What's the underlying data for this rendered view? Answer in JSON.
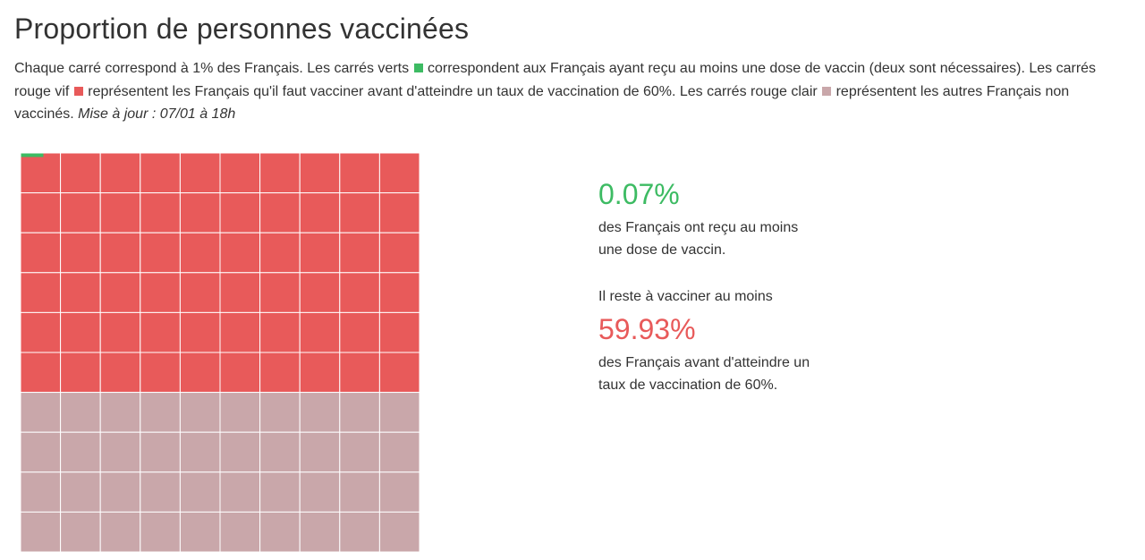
{
  "title": "Proportion de personnes vaccinées",
  "intro": {
    "part1": "Chaque carré correspond à 1% des Français. Les carrés verts ",
    "part2": " correspondent aux Français ayant reçu au moins une dose de vaccin (deux sont nécessaires). Les carrés rouge vif ",
    "part3": " représentent les Français qu'il faut vacciner avant d'atteindre un taux de vaccination de 60%. Les carrés rouge clair ",
    "part4": " représentent les autres Français non vaccinés. ",
    "update": "Mise à jour : 07/01 à 18h"
  },
  "colors": {
    "vaccinated": "#3dbb63",
    "to_vaccinate": "#e85a5a",
    "other": "#c9a7aa",
    "gridline": "#ffffff"
  },
  "stats": {
    "vaccinated_value": "0.07%",
    "vaccinated_text_line1": "des Français ont reçu au moins",
    "vaccinated_text_line2": "une dose de vaccin.",
    "remaining_intro": "Il reste à vacciner au moins",
    "remaining_value": "59.93%",
    "remaining_text_line1": "des Français avant d'atteindre un",
    "remaining_text_line2": "taux de vaccination de 60%."
  },
  "chart_data": {
    "type": "waffle",
    "grid": {
      "rows": 10,
      "cols": 10
    },
    "unit_percent": 1,
    "categories": [
      "vaccinated",
      "to_vaccinate",
      "other"
    ],
    "values": [
      0.07,
      59.93,
      40
    ],
    "fill_order": "top-left, row by row"
  }
}
